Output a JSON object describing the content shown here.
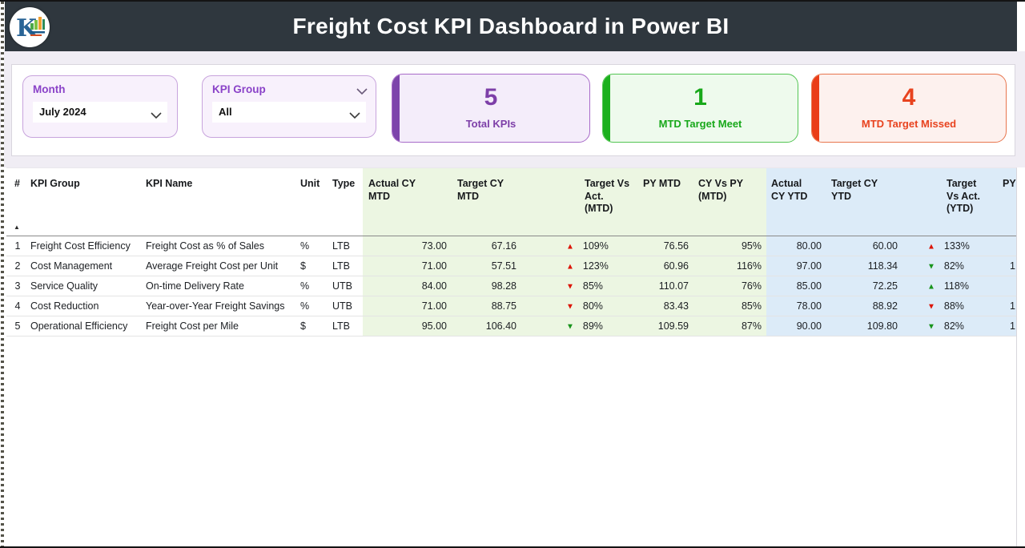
{
  "header": {
    "title": "Freight Cost KPI Dashboard in Power BI",
    "logo_letter": "K"
  },
  "filters": {
    "month": {
      "label": "Month",
      "value": "July 2024"
    },
    "kpi_group": {
      "label": "KPI Group",
      "value": "All"
    }
  },
  "kpi_cards": [
    {
      "value": "5",
      "label": "Total KPIs",
      "accent": "#7d3fa8"
    },
    {
      "value": "1",
      "label": "MTD Target Meet",
      "accent": "#1cb01e"
    },
    {
      "value": "4",
      "label": "MTD Target Missed",
      "accent": "#e8431f"
    }
  ],
  "status_colors": {
    "good": "#18941c",
    "bad": "#dc1405"
  },
  "table": {
    "sort_icon": "▲",
    "columns": [
      {
        "id": "num",
        "label": "#",
        "zone": "plain",
        "type": "rownum"
      },
      {
        "id": "group",
        "label": "KPI Group",
        "zone": "plain",
        "type": "text"
      },
      {
        "id": "name",
        "label": "KPI Name",
        "zone": "plain",
        "type": "text"
      },
      {
        "id": "unit",
        "label": "Unit",
        "zone": "plain",
        "type": "text"
      },
      {
        "id": "type",
        "label": "Type",
        "zone": "plain",
        "type": "text"
      },
      {
        "id": "actual_mtd",
        "label": "Actual CY\nMTD",
        "zone": "green",
        "type": "num"
      },
      {
        "id": "target_mtd",
        "label": "Target CY\nMTD",
        "zone": "green",
        "type": "num"
      },
      {
        "id": "tva_mtd",
        "label": "Target Vs\nAct.\n(MTD)",
        "zone": "green",
        "type": "indicator"
      },
      {
        "id": "py_mtd",
        "label": "PY MTD",
        "zone": "green",
        "type": "num"
      },
      {
        "id": "cyvspy_mtd",
        "label": "CY Vs PY\n(MTD)",
        "zone": "green",
        "type": "num"
      },
      {
        "id": "actual_ytd",
        "label": "Actual\nCY YTD",
        "zone": "blue",
        "type": "num"
      },
      {
        "id": "target_ytd",
        "label": "Target CY\nYTD",
        "zone": "blue",
        "type": "num"
      },
      {
        "id": "tva_ytd",
        "label": "Target\nVs Act.\n(YTD)",
        "zone": "blue",
        "type": "indicator"
      },
      {
        "id": "py_ytd",
        "label": "PY",
        "zone": "blue",
        "type": "clipped"
      }
    ],
    "rows": [
      {
        "num": "1",
        "group": "Freight Cost Efficiency",
        "name": "Freight Cost as % of Sales",
        "unit": "%",
        "type": "LTB",
        "actual_mtd": "73.00",
        "target_mtd": "67.16",
        "tva_mtd": {
          "value": "109%",
          "arrow": "up",
          "tone": "red"
        },
        "py_mtd": "76.56",
        "cyvspy_mtd": "95%",
        "actual_ytd": "80.00",
        "target_ytd": "60.00",
        "tva_ytd": {
          "value": "133%",
          "arrow": "up",
          "tone": "red"
        },
        "py_ytd": ""
      },
      {
        "num": "2",
        "group": "Cost Management",
        "name": "Average Freight Cost per Unit",
        "unit": "$",
        "type": "LTB",
        "actual_mtd": "71.00",
        "target_mtd": "57.51",
        "tva_mtd": {
          "value": "123%",
          "arrow": "up",
          "tone": "red"
        },
        "py_mtd": "60.96",
        "cyvspy_mtd": "116%",
        "actual_ytd": "97.00",
        "target_ytd": "118.34",
        "tva_ytd": {
          "value": "82%",
          "arrow": "down",
          "tone": "green"
        },
        "py_ytd": "1"
      },
      {
        "num": "3",
        "group": "Service Quality",
        "name": "On-time Delivery Rate",
        "unit": "%",
        "type": "UTB",
        "actual_mtd": "84.00",
        "target_mtd": "98.28",
        "tva_mtd": {
          "value": "85%",
          "arrow": "down",
          "tone": "red"
        },
        "py_mtd": "110.07",
        "cyvspy_mtd": "76%",
        "actual_ytd": "85.00",
        "target_ytd": "72.25",
        "tva_ytd": {
          "value": "118%",
          "arrow": "up",
          "tone": "green"
        },
        "py_ytd": ""
      },
      {
        "num": "4",
        "group": "Cost Reduction",
        "name": "Year-over-Year Freight Savings",
        "unit": "%",
        "type": "UTB",
        "actual_mtd": "71.00",
        "target_mtd": "88.75",
        "tva_mtd": {
          "value": "80%",
          "arrow": "down",
          "tone": "red"
        },
        "py_mtd": "83.43",
        "cyvspy_mtd": "85%",
        "actual_ytd": "78.00",
        "target_ytd": "88.92",
        "tva_ytd": {
          "value": "88%",
          "arrow": "down",
          "tone": "red"
        },
        "py_ytd": "1"
      },
      {
        "num": "5",
        "group": "Operational Efficiency",
        "name": "Freight Cost per Mile",
        "unit": "$",
        "type": "LTB",
        "actual_mtd": "95.00",
        "target_mtd": "106.40",
        "tva_mtd": {
          "value": "89%",
          "arrow": "down",
          "tone": "green"
        },
        "py_mtd": "109.59",
        "cyvspy_mtd": "87%",
        "actual_ytd": "90.00",
        "target_ytd": "109.80",
        "tva_ytd": {
          "value": "82%",
          "arrow": "down",
          "tone": "green"
        },
        "py_ytd": "1"
      }
    ]
  }
}
